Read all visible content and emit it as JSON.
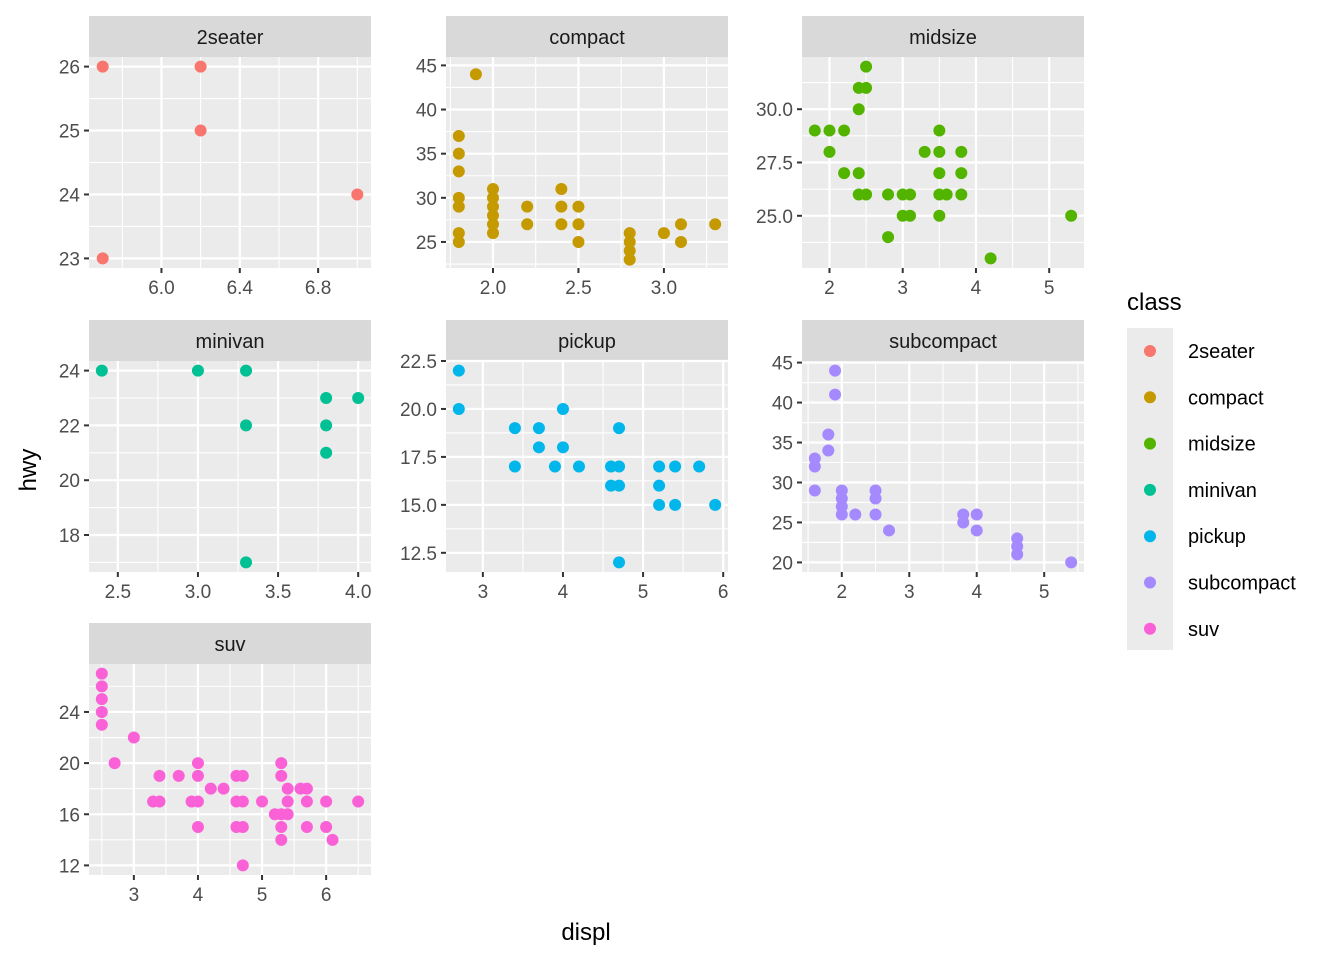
{
  "chart_data": {
    "type": "scatter",
    "xlabel": "displ",
    "ylabel": "hwy",
    "legend": {
      "title": "class",
      "position": "right",
      "entries": [
        {
          "label": "2seater",
          "color": "#F8766D"
        },
        {
          "label": "compact",
          "color": "#C49A00"
        },
        {
          "label": "midsize",
          "color": "#53B400"
        },
        {
          "label": "minivan",
          "color": "#00C094"
        },
        {
          "label": "pickup",
          "color": "#00B6EB"
        },
        {
          "label": "subcompact",
          "color": "#A58AFF"
        },
        {
          "label": "suv",
          "color": "#FB61D7"
        }
      ]
    },
    "panels": [
      {
        "name": "2seater",
        "color": "#F8766D",
        "xlim": [
          5.63,
          7.07
        ],
        "ylim": [
          22.85,
          26.15
        ],
        "xticks": [
          {
            "v": 6.0,
            "label": "6.0"
          },
          {
            "v": 6.4,
            "label": "6.4"
          },
          {
            "v": 6.8,
            "label": "6.8"
          }
        ],
        "yticks": [
          {
            "v": 23,
            "label": "23"
          },
          {
            "v": 24,
            "label": "24"
          },
          {
            "v": 25,
            "label": "25"
          },
          {
            "v": 26,
            "label": "26"
          }
        ],
        "points": [
          [
            5.7,
            26
          ],
          [
            5.7,
            23
          ],
          [
            6.2,
            26
          ],
          [
            6.2,
            25
          ],
          [
            7.0,
            24
          ]
        ]
      },
      {
        "name": "compact",
        "color": "#C49A00",
        "xlim": [
          1.725,
          3.375
        ],
        "ylim": [
          22.05,
          45.95
        ],
        "xticks": [
          {
            "v": 2.0,
            "label": "2.0"
          },
          {
            "v": 2.5,
            "label": "2.5"
          },
          {
            "v": 3.0,
            "label": "3.0"
          }
        ],
        "yticks": [
          {
            "v": 25,
            "label": "25"
          },
          {
            "v": 30,
            "label": "30"
          },
          {
            "v": 35,
            "label": "35"
          },
          {
            "v": 40,
            "label": "40"
          },
          {
            "v": 45,
            "label": "45"
          }
        ],
        "points": [
          [
            1.8,
            37
          ],
          [
            1.8,
            35
          ],
          [
            1.8,
            33
          ],
          [
            1.8,
            30
          ],
          [
            1.8,
            29
          ],
          [
            1.8,
            26
          ],
          [
            1.8,
            25
          ],
          [
            1.9,
            44
          ],
          [
            2.0,
            31
          ],
          [
            2.0,
            30
          ],
          [
            2.0,
            29
          ],
          [
            2.0,
            28
          ],
          [
            2.0,
            27
          ],
          [
            2.0,
            26
          ],
          [
            2.2,
            29
          ],
          [
            2.2,
            27
          ],
          [
            2.4,
            31
          ],
          [
            2.4,
            29
          ],
          [
            2.4,
            27
          ],
          [
            2.5,
            29
          ],
          [
            2.5,
            27
          ],
          [
            2.5,
            25
          ],
          [
            2.8,
            26
          ],
          [
            2.8,
            25
          ],
          [
            2.8,
            24
          ],
          [
            2.8,
            23
          ],
          [
            3.0,
            26
          ],
          [
            3.1,
            27
          ],
          [
            3.1,
            25
          ],
          [
            3.3,
            27
          ]
        ]
      },
      {
        "name": "midsize",
        "color": "#53B400",
        "xlim": [
          1.625,
          5.475
        ],
        "ylim": [
          22.55,
          32.45
        ],
        "xticks": [
          {
            "v": 2,
            "label": "2"
          },
          {
            "v": 3,
            "label": "3"
          },
          {
            "v": 4,
            "label": "4"
          },
          {
            "v": 5,
            "label": "5"
          }
        ],
        "yticks": [
          {
            "v": 25.0,
            "label": "25.0"
          },
          {
            "v": 27.5,
            "label": "27.5"
          },
          {
            "v": 30.0,
            "label": "30.0"
          }
        ],
        "points": [
          [
            1.8,
            29
          ],
          [
            2.0,
            29
          ],
          [
            2.0,
            28
          ],
          [
            2.2,
            29
          ],
          [
            2.2,
            27
          ],
          [
            2.4,
            31
          ],
          [
            2.4,
            30
          ],
          [
            2.4,
            27
          ],
          [
            2.4,
            26
          ],
          [
            2.5,
            32
          ],
          [
            2.5,
            31
          ],
          [
            2.5,
            26
          ],
          [
            2.8,
            26
          ],
          [
            2.8,
            24
          ],
          [
            3.0,
            26
          ],
          [
            3.0,
            25
          ],
          [
            3.1,
            26
          ],
          [
            3.1,
            25
          ],
          [
            3.3,
            28
          ],
          [
            3.5,
            29
          ],
          [
            3.5,
            28
          ],
          [
            3.5,
            27
          ],
          [
            3.5,
            26
          ],
          [
            3.5,
            25
          ],
          [
            3.6,
            26
          ],
          [
            3.8,
            28
          ],
          [
            3.8,
            27
          ],
          [
            3.8,
            26
          ],
          [
            4.2,
            23
          ],
          [
            5.3,
            25
          ]
        ]
      },
      {
        "name": "minivan",
        "color": "#00C094",
        "xlim": [
          2.32,
          4.08
        ],
        "ylim": [
          16.65,
          24.35
        ],
        "xticks": [
          {
            "v": 2.5,
            "label": "2.5"
          },
          {
            "v": 3.0,
            "label": "3.0"
          },
          {
            "v": 3.5,
            "label": "3.5"
          },
          {
            "v": 4.0,
            "label": "4.0"
          }
        ],
        "yticks": [
          {
            "v": 18,
            "label": "18"
          },
          {
            "v": 20,
            "label": "20"
          },
          {
            "v": 22,
            "label": "22"
          },
          {
            "v": 24,
            "label": "24"
          }
        ],
        "points": [
          [
            2.4,
            24
          ],
          [
            3.0,
            24
          ],
          [
            3.3,
            24
          ],
          [
            3.3,
            22
          ],
          [
            3.3,
            17
          ],
          [
            3.8,
            23
          ],
          [
            3.8,
            22
          ],
          [
            3.8,
            21
          ],
          [
            4.0,
            23
          ]
        ]
      },
      {
        "name": "pickup",
        "color": "#00B6EB",
        "xlim": [
          2.54,
          6.06
        ],
        "ylim": [
          11.5,
          22.5
        ],
        "xticks": [
          {
            "v": 3,
            "label": "3"
          },
          {
            "v": 4,
            "label": "4"
          },
          {
            "v": 5,
            "label": "5"
          },
          {
            "v": 6,
            "label": "6"
          }
        ],
        "yticks": [
          {
            "v": 12.5,
            "label": "12.5"
          },
          {
            "v": 15.0,
            "label": "15.0"
          },
          {
            "v": 17.5,
            "label": "17.5"
          },
          {
            "v": 20.0,
            "label": "20.0"
          },
          {
            "v": 22.5,
            "label": "22.5"
          }
        ],
        "points": [
          [
            2.7,
            22
          ],
          [
            2.7,
            20
          ],
          [
            3.4,
            19
          ],
          [
            3.4,
            17
          ],
          [
            3.7,
            19
          ],
          [
            3.7,
            18
          ],
          [
            3.9,
            17
          ],
          [
            4.0,
            20
          ],
          [
            4.0,
            18
          ],
          [
            4.2,
            17
          ],
          [
            4.6,
            17
          ],
          [
            4.6,
            16
          ],
          [
            4.7,
            19
          ],
          [
            4.7,
            17
          ],
          [
            4.7,
            16
          ],
          [
            4.7,
            12
          ],
          [
            5.2,
            17
          ],
          [
            5.2,
            16
          ],
          [
            5.2,
            15
          ],
          [
            5.4,
            17
          ],
          [
            5.4,
            15
          ],
          [
            5.7,
            17
          ],
          [
            5.9,
            15
          ]
        ]
      },
      {
        "name": "subcompact",
        "color": "#A58AFF",
        "xlim": [
          1.41,
          5.59
        ],
        "ylim": [
          18.8,
          45.2
        ],
        "xticks": [
          {
            "v": 2,
            "label": "2"
          },
          {
            "v": 3,
            "label": "3"
          },
          {
            "v": 4,
            "label": "4"
          },
          {
            "v": 5,
            "label": "5"
          }
        ],
        "yticks": [
          {
            "v": 20,
            "label": "20"
          },
          {
            "v": 25,
            "label": "25"
          },
          {
            "v": 30,
            "label": "30"
          },
          {
            "v": 35,
            "label": "35"
          },
          {
            "v": 40,
            "label": "40"
          },
          {
            "v": 45,
            "label": "45"
          }
        ],
        "points": [
          [
            1.6,
            33
          ],
          [
            1.6,
            32
          ],
          [
            1.6,
            29
          ],
          [
            1.8,
            36
          ],
          [
            1.8,
            34
          ],
          [
            1.9,
            44
          ],
          [
            1.9,
            41
          ],
          [
            2.0,
            29
          ],
          [
            2.0,
            28
          ],
          [
            2.0,
            27
          ],
          [
            2.0,
            26
          ],
          [
            2.2,
            26
          ],
          [
            2.5,
            29
          ],
          [
            2.5,
            28
          ],
          [
            2.5,
            26
          ],
          [
            2.7,
            24
          ],
          [
            3.8,
            26
          ],
          [
            3.8,
            25
          ],
          [
            4.0,
            26
          ],
          [
            4.0,
            24
          ],
          [
            4.6,
            23
          ],
          [
            4.6,
            22
          ],
          [
            4.6,
            21
          ],
          [
            5.4,
            20
          ]
        ]
      },
      {
        "name": "suv",
        "color": "#FB61D7",
        "xlim": [
          2.3,
          6.7
        ],
        "ylim": [
          11.25,
          27.75
        ],
        "xticks": [
          {
            "v": 3,
            "label": "3"
          },
          {
            "v": 4,
            "label": "4"
          },
          {
            "v": 5,
            "label": "5"
          },
          {
            "v": 6,
            "label": "6"
          }
        ],
        "yticks": [
          {
            "v": 12,
            "label": "12"
          },
          {
            "v": 16,
            "label": "16"
          },
          {
            "v": 20,
            "label": "20"
          },
          {
            "v": 24,
            "label": "24"
          }
        ],
        "points": [
          [
            2.5,
            27
          ],
          [
            2.5,
            26
          ],
          [
            2.5,
            25
          ],
          [
            2.5,
            24
          ],
          [
            2.5,
            23
          ],
          [
            2.7,
            20
          ],
          [
            3.0,
            22
          ],
          [
            3.3,
            17
          ],
          [
            3.4,
            19
          ],
          [
            3.4,
            17
          ],
          [
            3.7,
            19
          ],
          [
            3.9,
            17
          ],
          [
            4.0,
            20
          ],
          [
            4.0,
            19
          ],
          [
            4.0,
            17
          ],
          [
            4.0,
            15
          ],
          [
            4.2,
            18
          ],
          [
            4.4,
            18
          ],
          [
            4.6,
            19
          ],
          [
            4.6,
            17
          ],
          [
            4.6,
            15
          ],
          [
            4.7,
            19
          ],
          [
            4.7,
            17
          ],
          [
            4.7,
            15
          ],
          [
            4.7,
            12
          ],
          [
            5.0,
            17
          ],
          [
            5.2,
            16
          ],
          [
            5.3,
            20
          ],
          [
            5.3,
            19
          ],
          [
            5.3,
            16
          ],
          [
            5.3,
            15
          ],
          [
            5.3,
            14
          ],
          [
            5.4,
            18
          ],
          [
            5.4,
            17
          ],
          [
            5.4,
            16
          ],
          [
            5.6,
            18
          ],
          [
            5.7,
            18
          ],
          [
            5.7,
            17
          ],
          [
            5.7,
            15
          ],
          [
            6.0,
            17
          ],
          [
            6.0,
            15
          ],
          [
            6.1,
            14
          ],
          [
            6.5,
            17
          ]
        ]
      }
    ]
  }
}
